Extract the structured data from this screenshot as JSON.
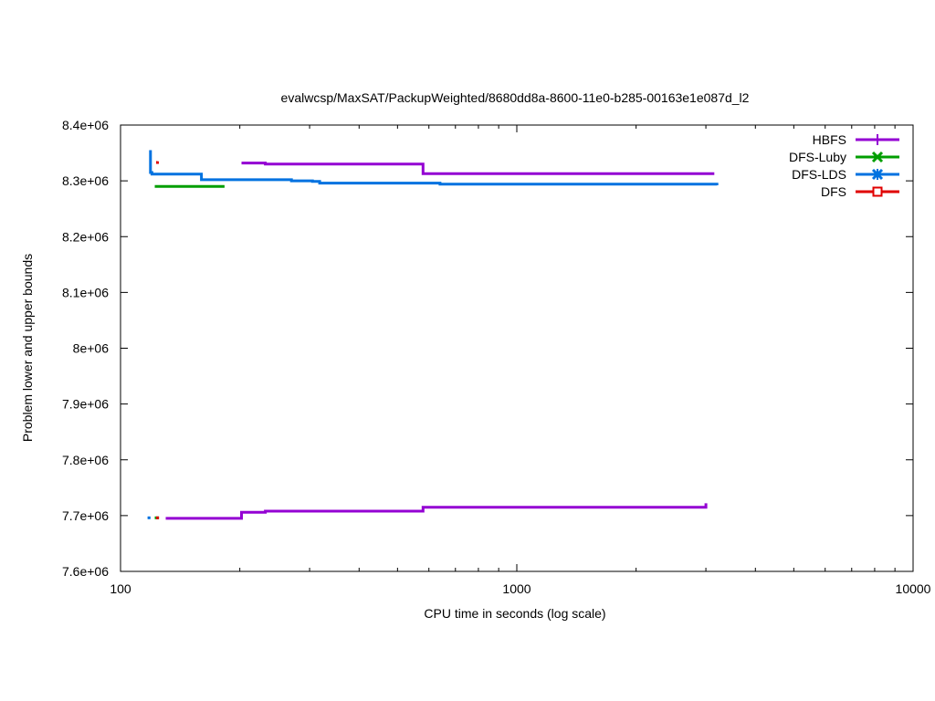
{
  "chart_data": {
    "type": "line",
    "title": "evalwcsp/MaxSAT/PackupWeighted/8680dd8a-8600-11e0-b285-00163e1e087d_l2",
    "xlabel": "CPU time in seconds (log scale)",
    "ylabel": "Problem lower and upper bounds",
    "xscale": "log",
    "xlim": [
      100,
      10000
    ],
    "ylim": [
      7600000,
      8400000
    ],
    "xticks": [
      {
        "value": 100,
        "label": "100"
      },
      {
        "value": 1000,
        "label": "1000"
      },
      {
        "value": 10000,
        "label": "10000"
      }
    ],
    "yticks": [
      {
        "value": 7600000,
        "label": "7.6e+06"
      },
      {
        "value": 7700000,
        "label": "7.7e+06"
      },
      {
        "value": 7800000,
        "label": "7.8e+06"
      },
      {
        "value": 7900000,
        "label": "7.9e+06"
      },
      {
        "value": 8000000,
        "label": "8e+06"
      },
      {
        "value": 8100000,
        "label": "8.1e+06"
      },
      {
        "value": 8200000,
        "label": "8.2e+06"
      },
      {
        "value": 8300000,
        "label": "8.3e+06"
      },
      {
        "value": 8400000,
        "label": "8.4e+06"
      }
    ],
    "grid": false,
    "legend_position": "top-right",
    "series": [
      {
        "name": "HBFS",
        "color": "#9400d3",
        "marker": "plus",
        "segments": [
          [
            [
              202,
              8332000
            ],
            [
              232,
              8332000
            ],
            [
              232,
              8330000
            ],
            [
              580,
              8330000
            ],
            [
              580,
              8313000
            ],
            [
              3150,
              8313000
            ]
          ],
          [
            [
              130,
              7695000
            ],
            [
              202,
              7695000
            ],
            [
              202,
              7706000
            ],
            [
              232,
              7706000
            ],
            [
              232,
              7708000
            ],
            [
              580,
              7708000
            ],
            [
              580,
              7715000
            ],
            [
              3000,
              7715000
            ],
            [
              3000,
              7722000
            ]
          ]
        ]
      },
      {
        "name": "DFS-Luby",
        "color": "#009e00",
        "marker": "x",
        "segments": [
          [
            [
              122,
              8290000
            ],
            [
              183,
              8290000
            ]
          ],
          [
            [
              122,
              7696000
            ],
            [
              125,
              7696000
            ]
          ]
        ]
      },
      {
        "name": "DFS-LDS",
        "color": "#0072e0",
        "marker": "star",
        "segments": [
          [
            [
              119,
              8355000
            ],
            [
              119,
              8315000
            ],
            [
              120,
              8315000
            ],
            [
              120,
              8312000
            ],
            [
              160,
              8312000
            ],
            [
              160,
              8302000
            ],
            [
              270,
              8302000
            ],
            [
              270,
              8300000
            ],
            [
              305,
              8300000
            ],
            [
              305,
              8299000
            ],
            [
              318,
              8299000
            ],
            [
              318,
              8296000
            ],
            [
              640,
              8296000
            ],
            [
              640,
              8294000
            ],
            [
              3200,
              8294000
            ],
            [
              3200,
              8292000
            ]
          ],
          [
            [
              117,
              7696000
            ],
            [
              119,
              7696000
            ]
          ]
        ]
      },
      {
        "name": "DFS",
        "color": "#e00000",
        "marker": "square",
        "segments": [
          [
            [
              123,
              8333000
            ],
            [
              124,
              8333000
            ],
            [
              124,
              8335000
            ]
          ],
          [
            [
              123,
              7696000
            ],
            [
              125,
              7696000
            ]
          ]
        ]
      }
    ]
  }
}
